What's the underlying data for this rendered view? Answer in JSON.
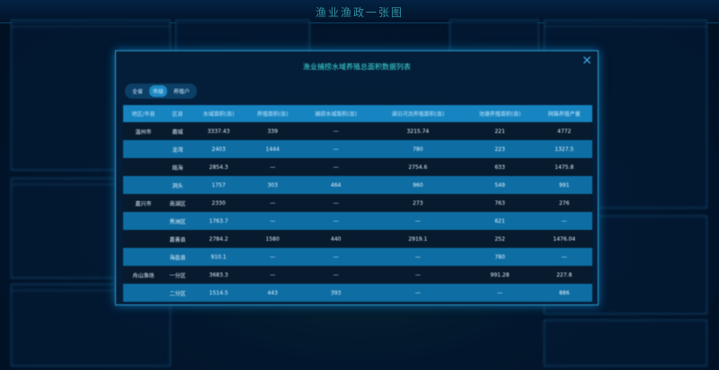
{
  "header": {
    "title": "渔业渔政一张图"
  },
  "modal": {
    "title": "渔业捕捞水域养殖总面积数据列表",
    "close_icon": "close-icon",
    "tabs": [
      {
        "label": "全省",
        "active": false
      },
      {
        "label": "市级",
        "active": true
      },
      {
        "label": "养殖户",
        "active": false
      }
    ],
    "columns": [
      "地区/市县",
      "区县",
      "水域面积(亩)",
      "养殖面积(亩)",
      "捕捞水域面积(亩)",
      "湖泊河流养殖面积(亩)",
      "池塘养殖面积(亩)",
      "网箱养殖产量"
    ],
    "rows": [
      [
        "温州市",
        "鹿城",
        "3337.43",
        "339",
        "—",
        "3215.74",
        "221",
        "4772"
      ],
      [
        "",
        "龙湾",
        "2403",
        "1444",
        "—",
        "780",
        "223",
        "1327.5"
      ],
      [
        "",
        "瓯海",
        "2854.3",
        "—",
        "—",
        "2754.6",
        "633",
        "1475.8"
      ],
      [
        "",
        "洞头",
        "1757",
        "303",
        "464",
        "960",
        "549",
        "991"
      ],
      [
        "嘉兴市",
        "南湖区",
        "2330",
        "—",
        "—",
        "273",
        "763",
        "276"
      ],
      [
        "",
        "秀洲区",
        "1763.7",
        "—",
        "—",
        "—",
        "621",
        "—"
      ],
      [
        "",
        "嘉善县",
        "2784.2",
        "1580",
        "440",
        "2919.1",
        "252",
        "1476.04"
      ],
      [
        "",
        "海盐县",
        "910.1",
        "—",
        "—",
        "—",
        "780",
        "—"
      ],
      [
        "舟山渔场",
        "一分区",
        "3683.3",
        "—",
        "—",
        "—",
        "991.28",
        "227.8"
      ],
      [
        "",
        "二分区",
        "1514.5",
        "443",
        "393",
        "—",
        "—",
        "886"
      ]
    ]
  }
}
